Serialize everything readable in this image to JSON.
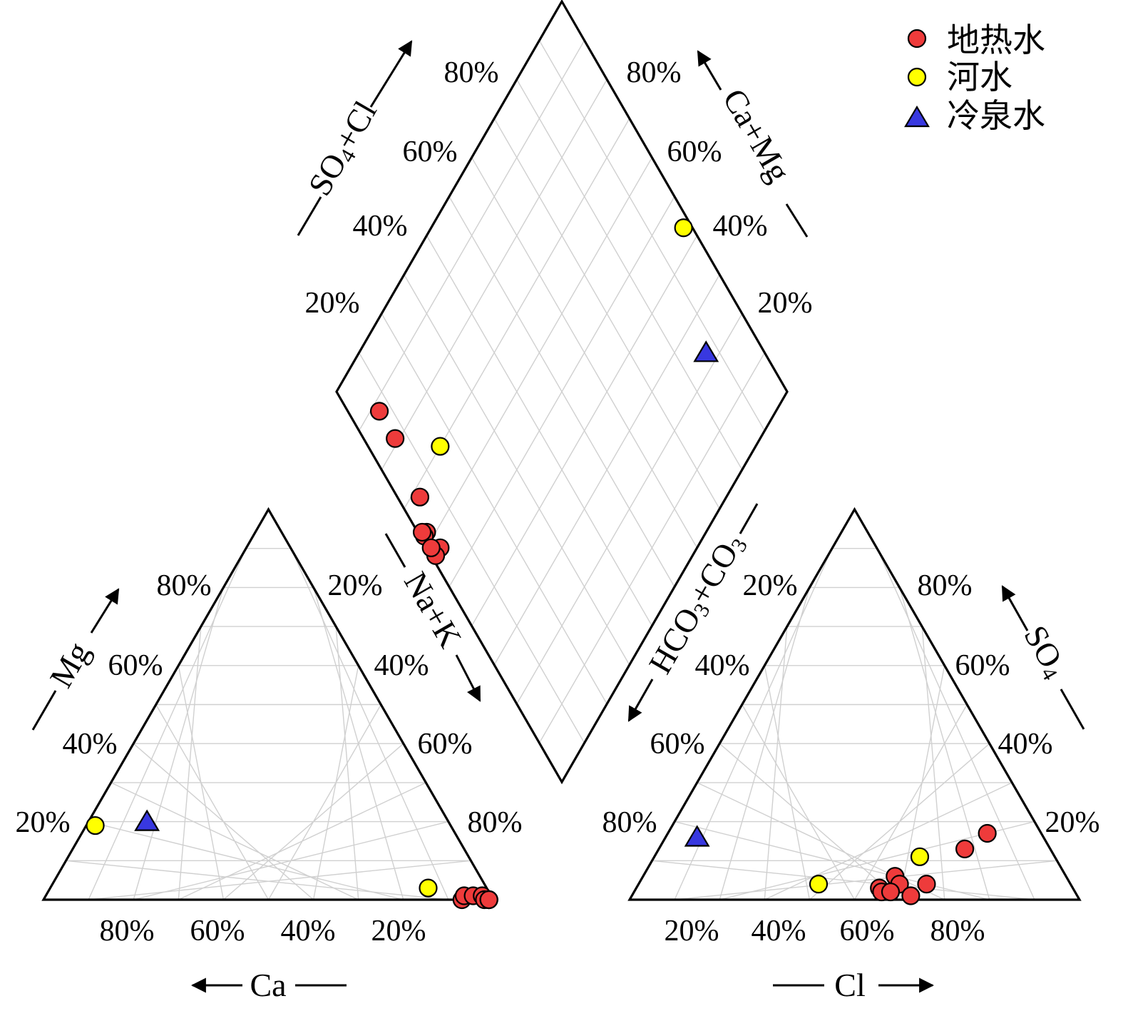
{
  "chart_data": {
    "type": "scatter",
    "subtype": "piper-diagram",
    "legend": {
      "position": "top-right",
      "items": [
        {
          "name": "地热水",
          "marker": "circle",
          "color": "#ee3b3b"
        },
        {
          "name": "河水",
          "marker": "circle",
          "color": "#ffff00"
        },
        {
          "name": "冷泉水",
          "marker": "triangle",
          "color": "#3838e0"
        }
      ]
    },
    "ticks": {
      "cation_bottom": [
        "80%",
        "60%",
        "40%",
        "20%"
      ],
      "cation_left": [
        "20%",
        "40%",
        "60%",
        "80%"
      ],
      "cation_right": [
        "20%",
        "40%",
        "60%",
        "80%"
      ],
      "anion_bottom": [
        "20%",
        "40%",
        "60%",
        "80%"
      ],
      "anion_left": [
        "80%",
        "60%",
        "40%",
        "20%"
      ],
      "anion_right": [
        "80%",
        "60%",
        "40%",
        "20%"
      ],
      "diamond_upper_left": [
        "20%",
        "40%",
        "60%",
        "80%"
      ],
      "diamond_upper_right": [
        "20%",
        "40%",
        "60%",
        "80%"
      ]
    },
    "axis_labels": {
      "mg": "Mg",
      "ca": "Ca",
      "nak": "Na+K",
      "cl": "Cl",
      "so4": "SO",
      "so4_sub": "4",
      "so4cl_1": "SO",
      "so4cl_sub": "4",
      "so4cl_2": "+Cl",
      "camg": "Ca+Mg",
      "hco3_1": "HCO",
      "hco3_sub1": "3",
      "hco3_2": "+CO",
      "hco3_sub2": "3"
    },
    "grid": true,
    "series": [
      {
        "name": "地热水",
        "samples": [
          {
            "ca": 7,
            "mg": 0,
            "nak": 93,
            "so4": 17,
            "cl": 71,
            "hco3": 12
          },
          {
            "ca": 6,
            "mg": 1,
            "nak": 93,
            "so4": 13,
            "cl": 68,
            "hco3": 19
          },
          {
            "ca": 4,
            "mg": 1,
            "nak": 95,
            "so4": 4,
            "cl": 64,
            "hco3": 32
          },
          {
            "ca": 2,
            "mg": 1,
            "nak": 97,
            "so4": 3,
            "cl": 54,
            "hco3": 43
          },
          {
            "ca": 2,
            "mg": 0,
            "nak": 98,
            "so4": 6,
            "cl": 56,
            "hco3": 38
          },
          {
            "ca": 1,
            "mg": 0,
            "nak": 99,
            "so4": 4,
            "cl": 58,
            "hco3": 38
          },
          {
            "ca": 1,
            "mg": 0,
            "nak": 99,
            "so4": 2,
            "cl": 55,
            "hco3": 43
          },
          {
            "ca": 1,
            "mg": 0,
            "nak": 99,
            "so4": 2,
            "cl": 57,
            "hco3": 41
          },
          {
            "ca": 1,
            "mg": 0,
            "nak": 99,
            "so4": 1,
            "cl": 62,
            "hco3": 37
          }
        ]
      },
      {
        "name": "河水",
        "samples": [
          {
            "ca": 79,
            "mg": 19,
            "nak": 2,
            "so4": 4,
            "cl": 40,
            "hco3": 56
          },
          {
            "ca": 13,
            "mg": 3,
            "nak": 84,
            "so4": 11,
            "cl": 59,
            "hco3": 30
          }
        ]
      },
      {
        "name": "冷泉水",
        "samples": [
          {
            "ca": 67,
            "mg": 20,
            "nak": 13,
            "so4": 16,
            "cl": 7,
            "hco3": 77
          }
        ]
      }
    ]
  }
}
